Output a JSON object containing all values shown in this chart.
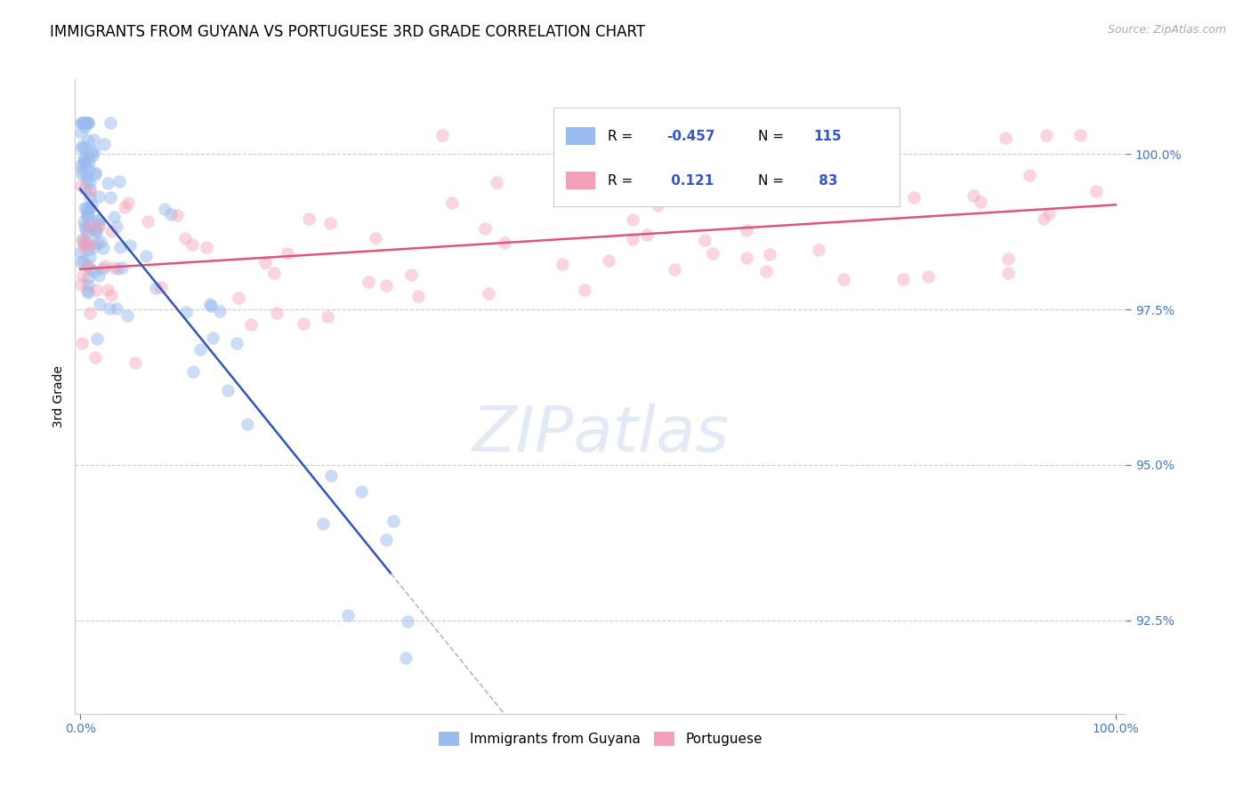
{
  "title": "IMMIGRANTS FROM GUYANA VS PORTUGUESE 3RD GRADE CORRELATION CHART",
  "source_text": "Source: ZipAtlas.com",
  "ylabel": "3rd Grade",
  "xlim": [
    0.0,
    100.0
  ],
  "ylim_data_min": 91.0,
  "ylim_data_max": 100.8,
  "yticks": [
    92.5,
    95.0,
    97.5,
    100.0
  ],
  "blue_color": "#99bbee",
  "pink_color": "#f4a0b8",
  "blue_line_color": "#3355bb",
  "pink_line_color": "#e05575",
  "watermark_text": "ZIPatlas",
  "title_fontsize": 12,
  "axis_label_fontsize": 10,
  "tick_fontsize": 10,
  "R_blue": -0.457,
  "N_blue": 115,
  "R_pink": 0.121,
  "N_pink": 83,
  "legend_label_blue": "Immigrants from Guyana",
  "legend_label_pink": "Portuguese"
}
